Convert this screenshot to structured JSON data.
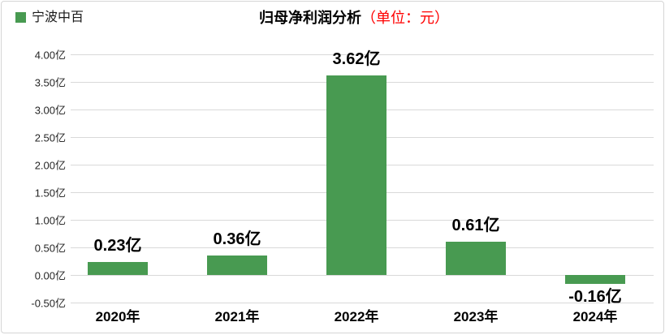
{
  "legend": {
    "label": "宁波中百",
    "color": "#489a51"
  },
  "title": {
    "main": "归母净利润分析",
    "unit": "（单位：元）",
    "unit_color": "#ff0000"
  },
  "chart_data": {
    "type": "bar",
    "title": "归母净利润分析（单位：元）",
    "categories": [
      "2020年",
      "2021年",
      "2022年",
      "2023年",
      "2024年"
    ],
    "series": [
      {
        "name": "宁波中百",
        "values": [
          0.23,
          0.36,
          3.62,
          0.61,
          -0.16
        ],
        "data_labels": [
          "0.23亿",
          "0.36亿",
          "3.62亿",
          "0.61亿",
          "-0.16亿"
        ],
        "color": "#489a51"
      }
    ],
    "xlabel": "",
    "ylabel": "",
    "ylim": [
      -0.5,
      4.0
    ],
    "ytick_step": 0.5,
    "ytick_suffix": "亿",
    "ytick_labels": [
      "4.00亿",
      "3.50亿",
      "3.00亿",
      "2.50亿",
      "2.00亿",
      "1.50亿",
      "1.00亿",
      "0.50亿",
      "0.00亿",
      "-0.50亿"
    ],
    "grid": true,
    "gridline_color": "#d9d9d9",
    "legend_position": "top-left"
  }
}
